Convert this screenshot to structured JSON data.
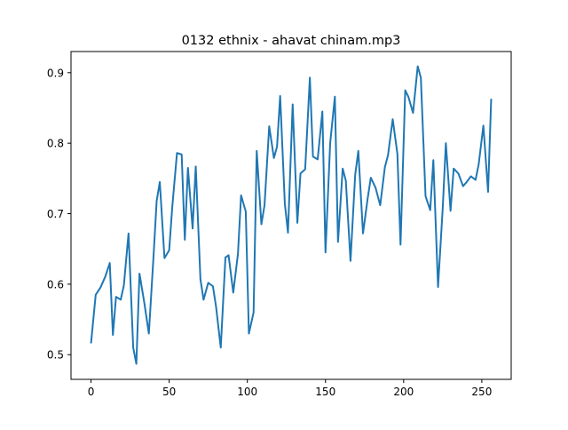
{
  "chart_data": {
    "type": "line",
    "title": "0132 ethnix - ahavat chinam.mp3",
    "xlabel": "",
    "ylabel": "",
    "xlim": [
      -12.8,
      268.8
    ],
    "ylim": [
      0.465,
      0.93
    ],
    "xticks": [
      0,
      50,
      100,
      150,
      200,
      250
    ],
    "yticks": [
      0.5,
      0.6,
      0.7,
      0.8,
      0.9
    ],
    "grid": false,
    "series": [
      {
        "color": "#1f77b4",
        "x": [
          0,
          3,
          6,
          9,
          12,
          14,
          16,
          19,
          21,
          24,
          27,
          29,
          31,
          34,
          37,
          40,
          42,
          44,
          47,
          50,
          52,
          55,
          58,
          60,
          62,
          65,
          67,
          70,
          72,
          75,
          78,
          80,
          83,
          86,
          88,
          91,
          94,
          96,
          99,
          101,
          104,
          106,
          109,
          111,
          114,
          117,
          119,
          121,
          124,
          126,
          129,
          132,
          134,
          137,
          140,
          142,
          145,
          148,
          150,
          153,
          156,
          158,
          161,
          163,
          166,
          169,
          171,
          174,
          177,
          179,
          182,
          185,
          188,
          190,
          193,
          196,
          198,
          201,
          203,
          206,
          209,
          211,
          214,
          217,
          219,
          222,
          225,
          227,
          230,
          232,
          235,
          238,
          240,
          243,
          246,
          248,
          251,
          254,
          256
        ],
        "y": [
          0.516,
          0.585,
          0.595,
          0.61,
          0.63,
          0.528,
          0.582,
          0.578,
          0.598,
          0.672,
          0.51,
          0.487,
          0.615,
          0.575,
          0.53,
          0.64,
          0.718,
          0.745,
          0.637,
          0.648,
          0.71,
          0.786,
          0.784,
          0.663,
          0.765,
          0.679,
          0.767,
          0.607,
          0.578,
          0.602,
          0.597,
          0.568,
          0.51,
          0.638,
          0.641,
          0.588,
          0.643,
          0.726,
          0.703,
          0.53,
          0.56,
          0.789,
          0.685,
          0.712,
          0.824,
          0.779,
          0.795,
          0.867,
          0.714,
          0.673,
          0.855,
          0.687,
          0.757,
          0.763,
          0.893,
          0.781,
          0.777,
          0.845,
          0.645,
          0.8,
          0.866,
          0.66,
          0.764,
          0.747,
          0.633,
          0.755,
          0.789,
          0.672,
          0.722,
          0.751,
          0.737,
          0.712,
          0.766,
          0.783,
          0.834,
          0.785,
          0.656,
          0.875,
          0.866,
          0.843,
          0.909,
          0.893,
          0.725,
          0.705,
          0.776,
          0.596,
          0.708,
          0.8,
          0.704,
          0.764,
          0.757,
          0.739,
          0.744,
          0.753,
          0.748,
          0.77,
          0.825,
          0.731,
          0.863
        ]
      }
    ]
  }
}
